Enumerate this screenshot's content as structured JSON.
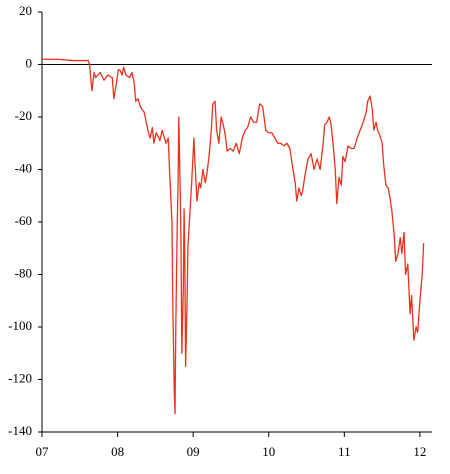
{
  "chart_data": {
    "type": "line",
    "color": "#e8321e",
    "xlim": [
      7,
      12.16
    ],
    "ylim": [
      -140,
      20
    ],
    "xticks": [
      {
        "value": 7,
        "label": "07"
      },
      {
        "value": 8,
        "label": "08"
      },
      {
        "value": 9,
        "label": "09"
      },
      {
        "value": 10,
        "label": "10"
      },
      {
        "value": 11,
        "label": "11"
      },
      {
        "value": 12,
        "label": "12"
      }
    ],
    "yticks": [
      -140,
      -120,
      -100,
      -80,
      -60,
      -40,
      -20,
      0,
      20
    ],
    "x": [
      7.0,
      7.2,
      7.4,
      7.55,
      7.61,
      7.63,
      7.66,
      7.69,
      7.71,
      7.77,
      7.82,
      7.87,
      7.93,
      7.95,
      7.98,
      8.01,
      8.03,
      8.06,
      8.08,
      8.11,
      8.16,
      8.19,
      8.22,
      8.24,
      8.27,
      8.3,
      8.32,
      8.35,
      8.38,
      8.4,
      8.43,
      8.46,
      8.48,
      8.51,
      8.53,
      8.56,
      8.59,
      8.61,
      8.64,
      8.67,
      8.69,
      8.72,
      8.73,
      8.75,
      8.76,
      8.77,
      8.79,
      8.8,
      8.81,
      8.83,
      8.84,
      8.85,
      8.87,
      8.88,
      8.89,
      8.9,
      8.92,
      8.93,
      8.96,
      8.98,
      9.01,
      9.02,
      9.05,
      9.08,
      9.1,
      9.13,
      9.16,
      9.18,
      9.21,
      9.24,
      9.26,
      9.29,
      9.31,
      9.34,
      9.37,
      9.39,
      9.42,
      9.45,
      9.49,
      9.53,
      9.57,
      9.61,
      9.65,
      9.69,
      9.72,
      9.76,
      9.8,
      9.84,
      9.88,
      9.92,
      9.96,
      10.0,
      10.04,
      10.08,
      10.12,
      10.16,
      10.2,
      10.24,
      10.28,
      10.32,
      10.35,
      10.37,
      10.4,
      10.43,
      10.45,
      10.48,
      10.52,
      10.56,
      10.6,
      10.64,
      10.68,
      10.72,
      10.74,
      10.77,
      10.8,
      10.82,
      10.85,
      10.88,
      10.9,
      10.93,
      10.96,
      10.98,
      11.01,
      11.05,
      11.09,
      11.13,
      11.17,
      11.21,
      11.25,
      11.29,
      11.31,
      11.34,
      11.37,
      11.39,
      11.42,
      11.44,
      11.47,
      11.5,
      11.52,
      11.55,
      11.58,
      11.6,
      11.63,
      11.66,
      11.68,
      11.71,
      11.74,
      11.76,
      11.79,
      11.81,
      11.84,
      11.87,
      11.89,
      11.92,
      11.95,
      11.97,
      12.0,
      12.03,
      12.05
    ],
    "values": [
      2,
      2,
      1.5,
      1.5,
      1.5,
      0,
      -10,
      -3,
      -5,
      -3,
      -6,
      -4,
      -5,
      -13,
      -8,
      -2,
      -2,
      -4,
      -1,
      -4,
      -5,
      -3,
      -7,
      -14,
      -13,
      -16,
      -17,
      -18,
      -22,
      -25,
      -28,
      -24,
      -30,
      -26,
      -27,
      -29,
      -25,
      -27,
      -30,
      -28,
      -42,
      -60,
      -90,
      -125,
      -133,
      -100,
      -60,
      -45,
      -20,
      -50,
      -70,
      -110,
      -85,
      -55,
      -75,
      -115,
      -90,
      -70,
      -55,
      -45,
      -28,
      -35,
      -52,
      -45,
      -47,
      -40,
      -45,
      -42,
      -35,
      -25,
      -15,
      -14,
      -25,
      -30,
      -20,
      -22,
      -26,
      -33,
      -32,
      -33,
      -30,
      -34,
      -28,
      -25,
      -24,
      -20,
      -22,
      -22,
      -15,
      -16,
      -25,
      -26,
      -26,
      -28,
      -30,
      -30,
      -31,
      -30,
      -32,
      -40,
      -45,
      -52,
      -47,
      -50,
      -48,
      -42,
      -36,
      -34,
      -40,
      -36,
      -40,
      -30,
      -23,
      -22,
      -20,
      -22,
      -30,
      -40,
      -53,
      -43,
      -46,
      -35,
      -37,
      -31,
      -32,
      -32,
      -28,
      -25,
      -22,
      -18,
      -14,
      -12,
      -17,
      -25,
      -22,
      -25,
      -27,
      -30,
      -38,
      -46,
      -47,
      -50,
      -56,
      -65,
      -75,
      -72,
      -66,
      -72,
      -64,
      -80,
      -76,
      -95,
      -88,
      -105,
      -100,
      -102,
      -90,
      -80,
      -68
    ]
  }
}
